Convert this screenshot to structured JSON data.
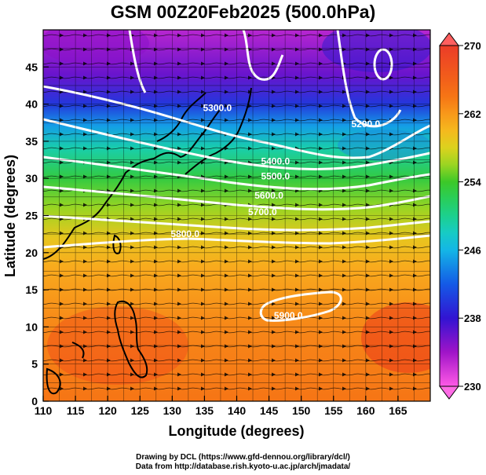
{
  "title": "GSM 00Z20Feb2025 (500.0hPa)",
  "credits": {
    "line1": "Drawing by DCL (https://www.gfd-dennou.org/library/dcl/)",
    "line2": "Data from http://database.rish.kyoto-u.ac.jp/arch/jmadata/"
  },
  "chart_data": {
    "type": "heatmap",
    "variable": "500hPa temperature (colour) with geopotential height contours and wind streamlines",
    "xlabel": "Longitude (degrees)",
    "ylabel": "Latitude  (degrees)",
    "xlim": [
      110,
      170
    ],
    "ylim": [
      0,
      50
    ],
    "x_ticks": [
      110,
      115,
      120,
      125,
      130,
      135,
      140,
      145,
      150,
      155,
      160,
      165
    ],
    "y_ticks": [
      0,
      5,
      10,
      15,
      20,
      25,
      30,
      35,
      40,
      45
    ],
    "colorbar": {
      "min": 230,
      "max": 270,
      "labels": [
        "230",
        "238",
        "246",
        "254",
        "262",
        "270"
      ],
      "label_values": [
        230,
        238,
        246,
        254,
        262,
        270
      ]
    },
    "temperature_gradient": [
      {
        "lat": 0,
        "value": 264
      },
      {
        "lat": 10,
        "value": 263
      },
      {
        "lat": 18,
        "value": 261
      },
      {
        "lat": 22,
        "value": 259
      },
      {
        "lat": 26,
        "value": 256
      },
      {
        "lat": 30,
        "value": 253
      },
      {
        "lat": 34,
        "value": 249
      },
      {
        "lat": 37,
        "value": 245
      },
      {
        "lat": 40,
        "value": 240
      },
      {
        "lat": 44,
        "value": 236
      },
      {
        "lat": 50,
        "value": 233
      }
    ],
    "contours": [
      {
        "label": "5300.0",
        "label_lon": 137,
        "label_lat": 39.5
      },
      {
        "label": "5200.0",
        "label_lon": 160,
        "label_lat": 37.3
      },
      {
        "label": "5400.0",
        "label_lon": 146,
        "label_lat": 32.3
      },
      {
        "label": "5500.0",
        "label_lon": 146,
        "label_lat": 30.3
      },
      {
        "label": "5600.0",
        "label_lon": 145,
        "label_lat": 27.7
      },
      {
        "label": "5700.0",
        "label_lon": 144,
        "label_lat": 25.5
      },
      {
        "label": "5800.0",
        "label_lon": 132,
        "label_lat": 22.5
      },
      {
        "label": "5900.0",
        "label_lon": 148,
        "label_lat": 11.5
      }
    ]
  }
}
